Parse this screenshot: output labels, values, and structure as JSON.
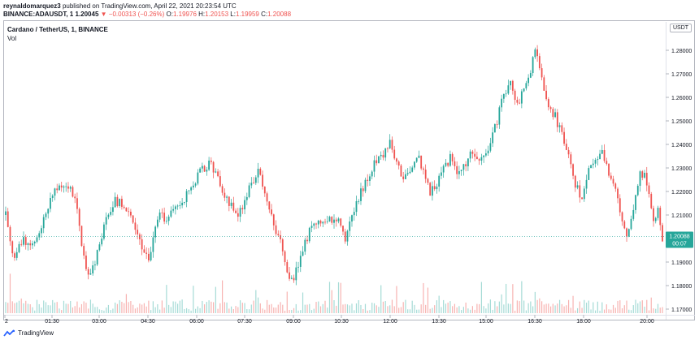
{
  "header": {
    "author": "reynaldomarquez3",
    "published_text": "published on TradingView.com, April 22, 2021 20:23:54 UTC",
    "symbol": "BINANCE:ADAUSDT, 1",
    "last": "1.20045",
    "change_arrow": "▼",
    "change": "−0.00313 (−0.26%)",
    "o_label": "O:",
    "o_value": "1.19976",
    "h_label": "H:",
    "h_value": "1.20153",
    "l_label": "L:",
    "l_value": "1.19959",
    "c_label": "C:",
    "c_value": "1.20088"
  },
  "legend": {
    "title": "Cardano / TetherUS, 1, BINANCE",
    "vol_label": "Vol"
  },
  "currency_badge": "USDT",
  "footer": {
    "brand": "TradingView"
  },
  "colors": {
    "up": "#26a69a",
    "down": "#ef5350",
    "price_tag": "#26a69a",
    "up_vol": "#a5dbd6",
    "down_vol": "#f7b3b1"
  },
  "chart_data": {
    "type": "candlestick",
    "title": "Cardano / TetherUS, 1, BINANCE",
    "x_ticks": [
      "2",
      "01:30",
      "03:00",
      "04:30",
      "06:00",
      "07:30",
      "09:00",
      "10:30",
      "12:00",
      "13:30",
      "15:00",
      "16:30",
      "18:00",
      "20:00"
    ],
    "y_ticks": [
      "1.28000",
      "1.27000",
      "1.26000",
      "1.25000",
      "1.24000",
      "1.23000",
      "1.22000",
      "1.21000",
      "1.20000",
      "1.19000",
      "1.18000",
      "1.17000"
    ],
    "ylim": [
      1.17,
      1.285
    ],
    "last_price": "1.20088",
    "countdown": "00:07",
    "close_path": [
      [
        0,
        1.21
      ],
      [
        2,
        1.198
      ],
      [
        4,
        1.192
      ],
      [
        8,
        1.2
      ],
      [
        12,
        1.196
      ],
      [
        15,
        1.203
      ],
      [
        18,
        1.212
      ],
      [
        22,
        1.22
      ],
      [
        25,
        1.223
      ],
      [
        28,
        1.222
      ],
      [
        31,
        1.218
      ],
      [
        34,
        1.198
      ],
      [
        36,
        1.188
      ],
      [
        38,
        1.184
      ],
      [
        40,
        1.19
      ],
      [
        43,
        1.2
      ],
      [
        46,
        1.212
      ],
      [
        49,
        1.216
      ],
      [
        53,
        1.214
      ],
      [
        57,
        1.208
      ],
      [
        60,
        1.2
      ],
      [
        62,
        1.194
      ],
      [
        64,
        1.19
      ],
      [
        66,
        1.2
      ],
      [
        69,
        1.21
      ],
      [
        72,
        1.208
      ],
      [
        75,
        1.212
      ],
      [
        79,
        1.216
      ],
      [
        83,
        1.222
      ],
      [
        87,
        1.228
      ],
      [
        91,
        1.232
      ],
      [
        94,
        1.228
      ],
      [
        97,
        1.22
      ],
      [
        101,
        1.214
      ],
      [
        104,
        1.21
      ],
      [
        107,
        1.215
      ],
      [
        110,
        1.224
      ],
      [
        113,
        1.228
      ],
      [
        116,
        1.22
      ],
      [
        119,
        1.21
      ],
      [
        122,
        1.2
      ],
      [
        124,
        1.196
      ],
      [
        126,
        1.186
      ],
      [
        128,
        1.182
      ],
      [
        131,
        1.188
      ],
      [
        134,
        1.198
      ],
      [
        137,
        1.205
      ],
      [
        140,
        1.209
      ],
      [
        144,
        1.206
      ],
      [
        147,
        1.21
      ],
      [
        150,
        1.206
      ],
      [
        152,
        1.2
      ],
      [
        154,
        1.206
      ],
      [
        157,
        1.214
      ],
      [
        160,
        1.222
      ],
      [
        163,
        1.228
      ],
      [
        166,
        1.233
      ],
      [
        169,
        1.236
      ],
      [
        172,
        1.24
      ],
      [
        175,
        1.232
      ],
      [
        178,
        1.226
      ],
      [
        181,
        1.228
      ],
      [
        184,
        1.236
      ],
      [
        187,
        1.228
      ],
      [
        190,
        1.22
      ],
      [
        193,
        1.224
      ],
      [
        196,
        1.23
      ],
      [
        199,
        1.234
      ],
      [
        202,
        1.228
      ],
      [
        205,
        1.23
      ],
      [
        208,
        1.236
      ],
      [
        211,
        1.232
      ],
      [
        214,
        1.235
      ],
      [
        217,
        1.24
      ],
      [
        220,
        1.25
      ],
      [
        223,
        1.262
      ],
      [
        226,
        1.266
      ],
      [
        229,
        1.258
      ],
      [
        232,
        1.262
      ],
      [
        235,
        1.272
      ],
      [
        237,
        1.28
      ],
      [
        240,
        1.268
      ],
      [
        243,
        1.256
      ],
      [
        246,
        1.252
      ],
      [
        249,
        1.244
      ],
      [
        252,
        1.234
      ],
      [
        255,
        1.222
      ],
      [
        258,
        1.218
      ],
      [
        261,
        1.228
      ],
      [
        264,
        1.232
      ],
      [
        267,
        1.236
      ],
      [
        270,
        1.228
      ],
      [
        273,
        1.22
      ],
      [
        276,
        1.206
      ],
      [
        278,
        1.2
      ],
      [
        281,
        1.214
      ],
      [
        284,
        1.228
      ],
      [
        286,
        1.226
      ],
      [
        288,
        1.218
      ],
      [
        290,
        1.208
      ],
      [
        292,
        1.212
      ],
      [
        294,
        1.2
      ]
    ]
  }
}
